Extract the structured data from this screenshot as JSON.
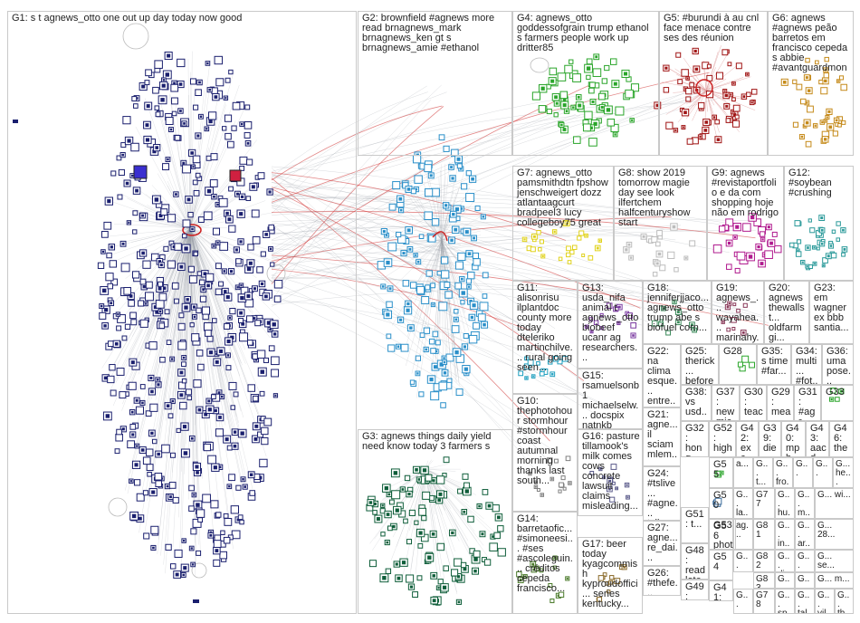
{
  "groups": [
    {
      "id": "G1",
      "label": "G1: s t agnews_otto one out up day today now good"
    },
    {
      "id": "G2",
      "label": "G2: brownfield #agnews more read brnagnews_mark brnagnews_ken gt s brnagnews_amie #ethanol"
    },
    {
      "id": "G3",
      "label": "G3: agnews things daily yield need know today 3 farmers s"
    },
    {
      "id": "G4",
      "label": "G4: agnews_otto goddessofgrain trump ethanol s farmers people work up dritter85"
    },
    {
      "id": "G5",
      "label": "G5: #burundi à au cnl face menace contre ses des réunion"
    },
    {
      "id": "G6",
      "label": "G6: agnews #agnews peão barretos em francisco cepeda s abbie #avantguardmon"
    },
    {
      "id": "G7",
      "label": "G7: agnews_otto pamsmithdtn fpshow jenschweigert dozz atlantaagcurt bradpeel3 lucy collegeboy75 great"
    },
    {
      "id": "G8",
      "label": "G8: show 2019 tomorrow magie day see look ilfertchem halfcenturyshow start"
    },
    {
      "id": "G9",
      "label": "G9: agnews #revistaportfolio e da com shopping hoje não em rodrigo"
    },
    {
      "id": "G12",
      "label": "G12: #soybean #crushing"
    },
    {
      "id": "G11",
      "label": "G11: alisonrisu ilplantdoc county more today dteleriko martinchilve... rural going seen..."
    },
    {
      "id": "G13",
      "label": "G13: usda_nifa animal t agnews_otto biobeef ucanr ag researchers..."
    },
    {
      "id": "G18",
      "label": "G18: jenniferjjaco... agnews_otto trump abe s biofuel corn..."
    },
    {
      "id": "G19",
      "label": "G19: agnews_... wayahea... marinahy... oldie..."
    },
    {
      "id": "G20",
      "label": "G20: agnews thewallst... oldfarmgi... people..."
    },
    {
      "id": "G23",
      "label": "G23: em wagner ex bbb santia..."
    },
    {
      "id": "G22",
      "label": "G22: na clima esque... entre..."
    },
    {
      "id": "G25",
      "label": "G25: therick... before..."
    },
    {
      "id": "G28",
      "label": "G28"
    },
    {
      "id": "G35",
      "label": "G35: s time #far..."
    },
    {
      "id": "G34",
      "label": "G34: multi... #fot..."
    },
    {
      "id": "G36",
      "label": "G36: uma pose..."
    },
    {
      "id": "G15",
      "label": "G15: rsamuelsonb1 michaelselw... docspix natnkb _tiffanybeasl..."
    },
    {
      "id": "G38",
      "label": "G38: vs usd..."
    },
    {
      "id": "G37",
      "label": "G37: new mich..."
    },
    {
      "id": "G30",
      "label": "G30: teac... sen..."
    },
    {
      "id": "G29",
      "label": "G29: mea... #ag..."
    },
    {
      "id": "G31",
      "label": "G31: #agr... #ag..."
    },
    {
      "id": "G33",
      "label": "G33"
    },
    {
      "id": "G10",
      "label": "G10: thephotohour stormhour #stormhour coast autumnal morning thanks last south..."
    },
    {
      "id": "G21",
      "label": "G21: agne... il sciam mlem... dozae..."
    },
    {
      "id": "G32",
      "label": "G32: hong first..."
    },
    {
      "id": "G52",
      "label": "G52: high..."
    },
    {
      "id": "G42",
      "label": "G42: exc... tim..."
    },
    {
      "id": "G39",
      "label": "G39: die..."
    },
    {
      "id": "G40",
      "label": "G40: mph kid..."
    },
    {
      "id": "G43",
      "label": "G43: aacd"
    },
    {
      "id": "G46",
      "label": "G46: the"
    },
    {
      "id": "G16",
      "label": "G16: pasture tillamook's milk comes cows concrete lawsuit claims misleading..."
    },
    {
      "id": "G24",
      "label": "G24: #tslive... #agne... tslives..."
    },
    {
      "id": "G55",
      "label": "G55"
    },
    {
      "id": "G50",
      "label": "G50"
    },
    {
      "id": "G56",
      "label": "G56"
    },
    {
      "id": "G51",
      "label": "G51: t..."
    },
    {
      "id": "G14",
      "label": "G14: barretaofic... #simoneesi... #ses #ascoleguin... créditos cepeda francisco..."
    },
    {
      "id": "G27",
      "label": "G27: agne... re_dai..."
    },
    {
      "id": "G53",
      "label": "G53: phot..."
    },
    {
      "id": "G48",
      "label": "G48: read late..."
    },
    {
      "id": "G54",
      "label": "G54"
    },
    {
      "id": "G17",
      "label": "G17: beer today kyagcommish kyproudoffici... series kentucky..."
    },
    {
      "id": "G26",
      "label": "G26: #thefe... #agne..."
    },
    {
      "id": "G49",
      "label": "G49: bac..."
    },
    {
      "id": "G41",
      "label": "G41: paul..."
    }
  ],
  "tiny_groups": [
    {
      "id": "g-a1",
      "label": "a..."
    },
    {
      "id": "g-a2",
      "label": "G... t..."
    },
    {
      "id": "g-a3",
      "label": "G... fro..."
    },
    {
      "id": "g-a4",
      "label": "G..."
    },
    {
      "id": "g-a5",
      "label": "G..."
    },
    {
      "id": "g-a6",
      "label": "G... he..."
    },
    {
      "id": "g-b1",
      "label": "G... la..."
    },
    {
      "id": "g-b2",
      "label": "G77"
    },
    {
      "id": "g-b3",
      "label": "G... hu..."
    },
    {
      "id": "g-b4",
      "label": "G... m..."
    },
    {
      "id": "g-b5",
      "label": "G... wi..."
    },
    {
      "id": "g-c1",
      "label": "ag..."
    },
    {
      "id": "g-c2",
      "label": "G81"
    },
    {
      "id": "g-c3",
      "label": "G... in..."
    },
    {
      "id": "g-c4",
      "label": "G... ar..."
    },
    {
      "id": "g-c5",
      "label": "G... 28..."
    },
    {
      "id": "g-d1",
      "label": "G..."
    },
    {
      "id": "g-d2",
      "label": "G82"
    },
    {
      "id": "g-d3",
      "label": "G... di..."
    },
    {
      "id": "g-d4",
      "label": "G... na..."
    },
    {
      "id": "g-d5",
      "label": "G... se..."
    },
    {
      "id": "g-e1",
      "label": "G83"
    },
    {
      "id": "g-e2",
      "label": "G... gr..."
    },
    {
      "id": "g-e3",
      "label": "G... ar..."
    },
    {
      "id": "g-e4",
      "label": "G... m..."
    },
    {
      "id": "g-f1",
      "label": "G..."
    },
    {
      "id": "g-f2",
      "label": "G78"
    },
    {
      "id": "g-f3",
      "label": "G... sp..."
    },
    {
      "id": "g-f4",
      "label": "G... tal..."
    },
    {
      "id": "g-f5",
      "label": "G... vil..."
    },
    {
      "id": "g-f6",
      "label": "G... th..."
    }
  ],
  "colors": {
    "G1": "#1a1f6e",
    "G2": "#2a8fc9",
    "G3": "#0f5e3a",
    "G4": "#2aa52a",
    "G5": "#a01515",
    "G6": "#c58a1a",
    "G7": "#e0d21c",
    "G8": "#d8d8d8",
    "G9": "#b01a8e",
    "G10": "#808080",
    "G11": "#1f9fbf",
    "G12": "#2b9a9a",
    "cross_edge": "#cc2222",
    "edge": "#9aa0a8"
  }
}
